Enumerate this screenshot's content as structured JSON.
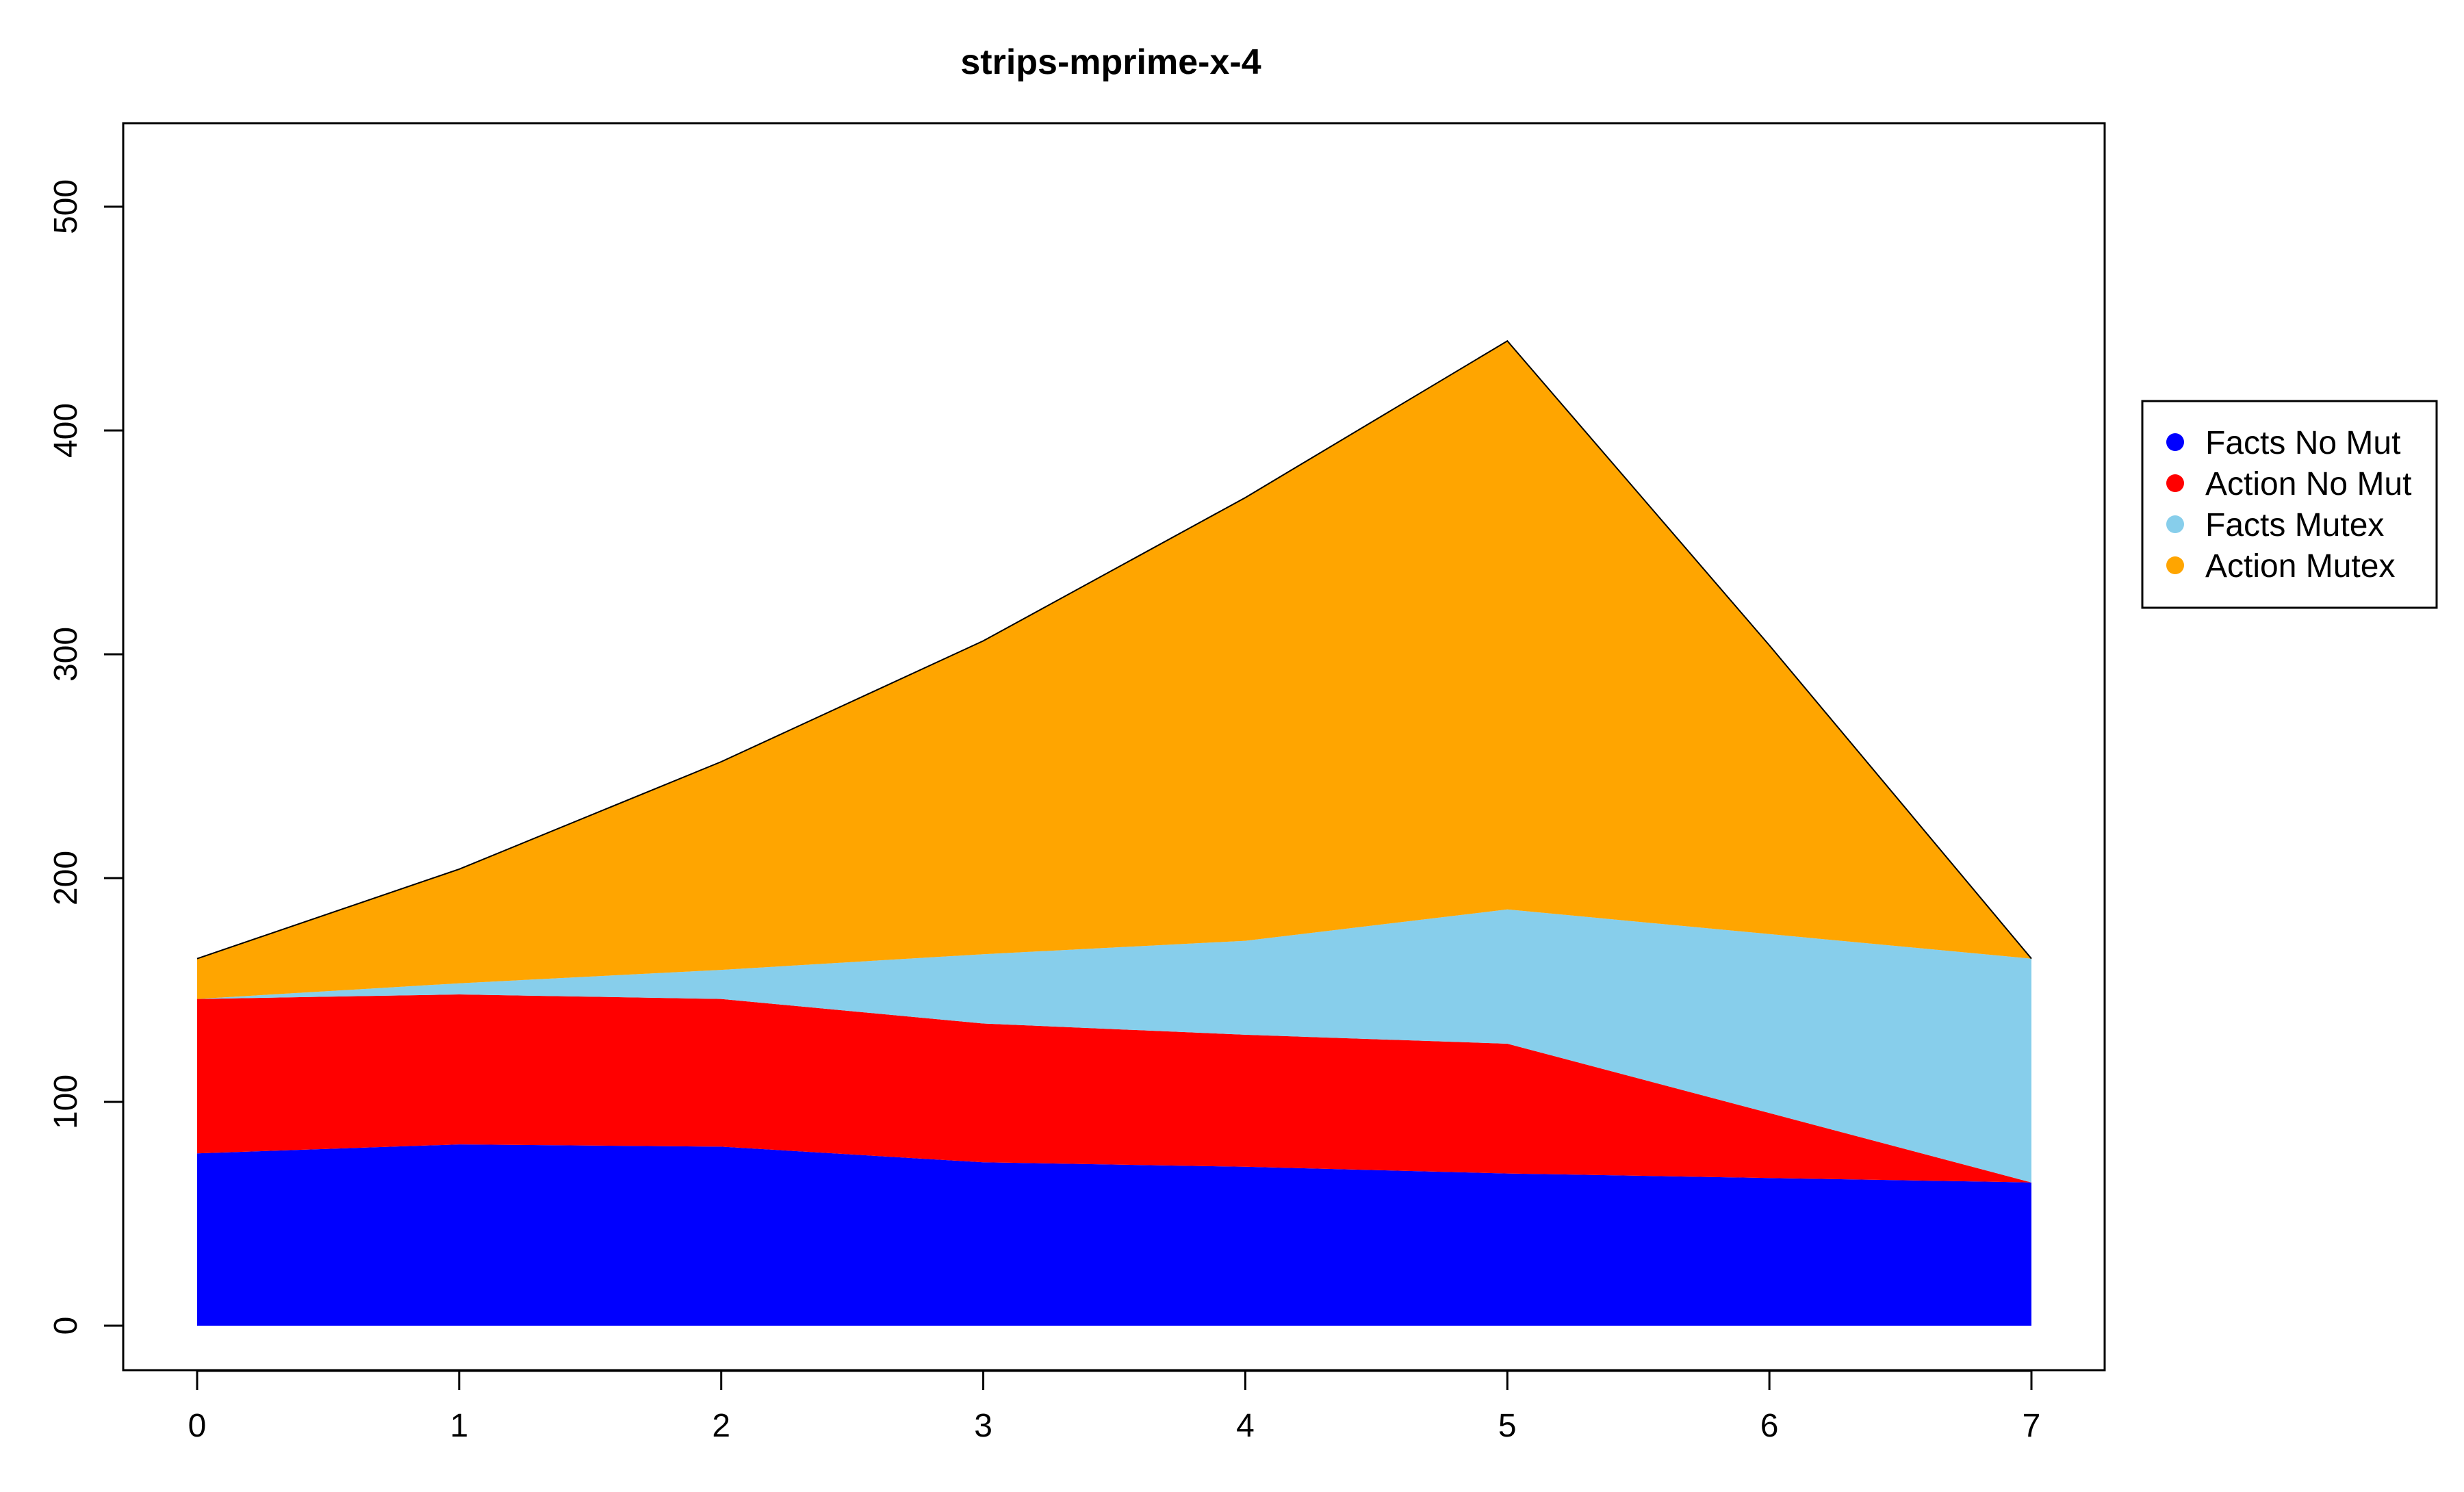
{
  "chart_data": {
    "type": "area",
    "stacked": true,
    "title": "strips-mprime-x-4",
    "xlabel": "",
    "ylabel": "",
    "x": [
      0,
      1,
      2,
      3,
      4,
      5,
      6,
      7
    ],
    "xlim": [
      0,
      7
    ],
    "ylim": [
      0,
      540
    ],
    "x_ticks": [
      "0",
      "1",
      "2",
      "3",
      "4",
      "5",
      "6",
      "7"
    ],
    "y_ticks": [
      "0",
      "100",
      "200",
      "300",
      "400",
      "500"
    ],
    "grid": false,
    "legend_position": "right",
    "series": [
      {
        "name": "Facts No Mut",
        "color": "#0000ff",
        "values": [
          77,
          81,
          80,
          73,
          71,
          68,
          66,
          64
        ]
      },
      {
        "name": "Action No Mut",
        "color": "#ff0000",
        "values": [
          69,
          67,
          66,
          62,
          59,
          58,
          29,
          0
        ]
      },
      {
        "name": "Facts Mutex",
        "color": "#87ceeb",
        "values": [
          0,
          5,
          13,
          31,
          42,
          60,
          80,
          100
        ]
      },
      {
        "name": "Action Mutex",
        "color": "#ffa500",
        "values": [
          18,
          51,
          93,
          140,
          198,
          254,
          129,
          0
        ]
      }
    ]
  }
}
